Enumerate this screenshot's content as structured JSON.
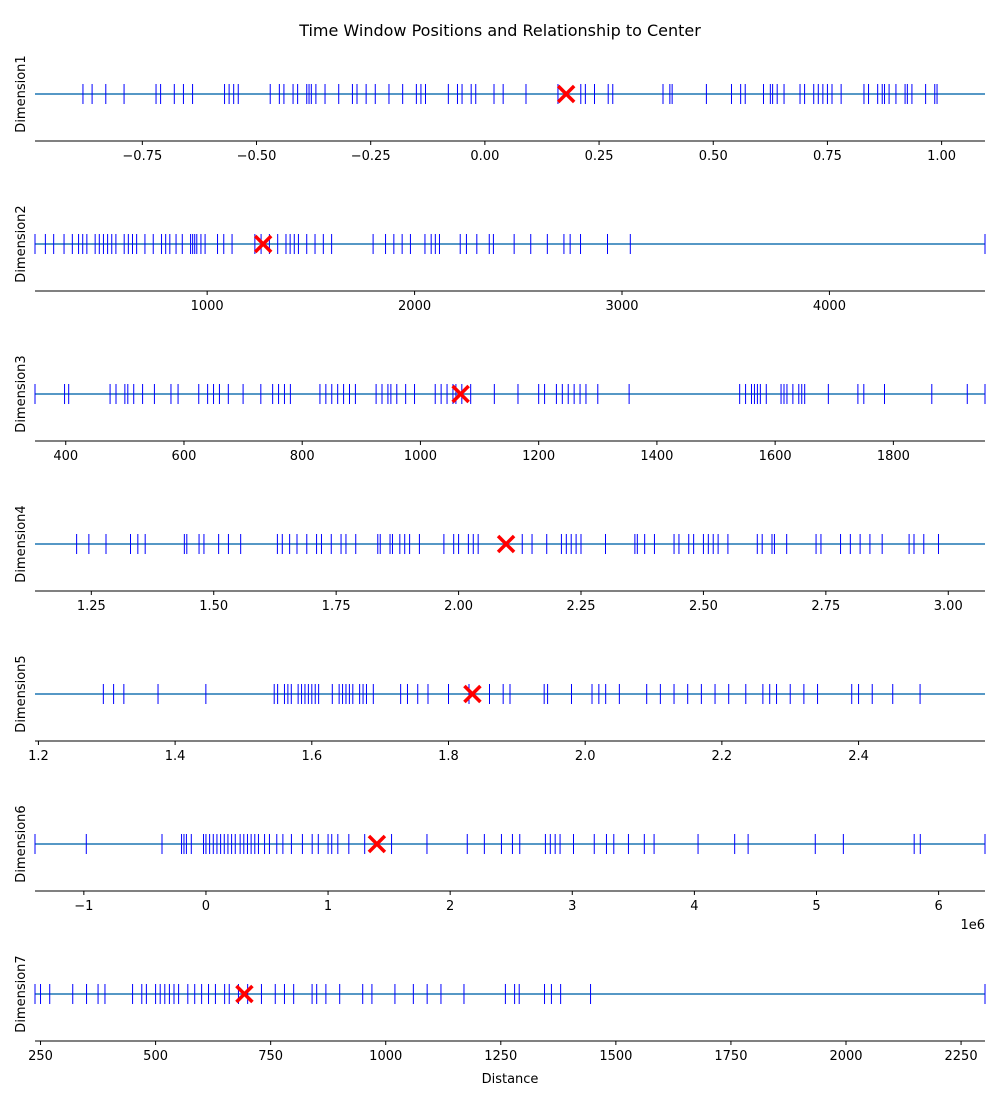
{
  "chart_data": {
    "type": "event-plot",
    "title": "Time Window Positions and Relationship to Center",
    "xlabel": "Distance",
    "marker": "x",
    "colors": {
      "ticks": "#0000ff",
      "line": "#1f77b4",
      "center": "#ff0000"
    },
    "panels": [
      {
        "ylabel": "Dimension1",
        "xlim": [
          -0.985,
          1.095
        ],
        "ticks": [
          -0.75,
          -0.5,
          -0.25,
          0.0,
          0.25,
          0.5,
          0.75,
          1.0
        ],
        "tick_labels": [
          "−0.75",
          "−0.50",
          "−0.25",
          "0.00",
          "0.25",
          "0.50",
          "0.75",
          "1.00"
        ],
        "offset_label": "",
        "center": 0.178,
        "events": [
          -0.88,
          -0.86,
          -0.83,
          -0.79,
          -0.72,
          -0.71,
          -0.68,
          -0.66,
          -0.64,
          -0.57,
          -0.56,
          -0.55,
          -0.54,
          -0.47,
          -0.45,
          -0.44,
          -0.42,
          -0.41,
          -0.39,
          -0.385,
          -0.38,
          -0.37,
          -0.35,
          -0.32,
          -0.29,
          -0.28,
          -0.26,
          -0.24,
          -0.21,
          -0.18,
          -0.15,
          -0.14,
          -0.13,
          -0.08,
          -0.06,
          -0.05,
          -0.03,
          -0.02,
          0.02,
          0.04,
          0.09,
          0.16,
          0.21,
          0.22,
          0.24,
          0.27,
          0.28,
          0.39,
          0.405,
          0.41,
          0.485,
          0.54,
          0.56,
          0.57,
          0.61,
          0.625,
          0.63,
          0.64,
          0.655,
          0.69,
          0.7,
          0.72,
          0.73,
          0.74,
          0.75,
          0.76,
          0.78,
          0.83,
          0.84,
          0.86,
          0.87,
          0.875,
          0.885,
          0.9,
          0.92,
          0.925,
          0.935,
          0.965,
          0.985,
          0.99
        ]
      },
      {
        "ylabel": "Dimension2",
        "xlim": [
          170,
          4750
        ],
        "ticks": [
          1000,
          2000,
          3000,
          4000
        ],
        "tick_labels": [
          "1000",
          "2000",
          "3000",
          "4000"
        ],
        "offset_label": "",
        "center": 1270,
        "events": [
          170,
          220,
          260,
          310,
          350,
          380,
          400,
          420,
          460,
          480,
          500,
          520,
          540,
          560,
          600,
          620,
          640,
          660,
          700,
          740,
          780,
          800,
          820,
          850,
          880,
          920,
          930,
          940,
          950,
          970,
          990,
          1050,
          1080,
          1120,
          1230,
          1260,
          1300,
          1340,
          1380,
          1400,
          1420,
          1440,
          1480,
          1520,
          1560,
          1600,
          1800,
          1860,
          1900,
          1940,
          1980,
          2050,
          2080,
          2100,
          2120,
          2220,
          2250,
          2300,
          2360,
          2380,
          2480,
          2560,
          2640,
          2720,
          2750,
          2800,
          2930,
          3040,
          4750
        ]
      },
      {
        "ylabel": "Dimension3",
        "xlim": [
          348,
          1955
        ],
        "ticks": [
          400,
          600,
          800,
          1000,
          1200,
          1400,
          1600,
          1800
        ],
        "tick_labels": [
          "400",
          "600",
          "800",
          "1000",
          "1200",
          "1400",
          "1600",
          "1800"
        ],
        "offset_label": "",
        "center": 1068,
        "events": [
          348,
          398,
          405,
          475,
          485,
          500,
          505,
          515,
          530,
          550,
          578,
          590,
          625,
          640,
          650,
          660,
          675,
          700,
          730,
          750,
          760,
          770,
          780,
          830,
          840,
          850,
          860,
          870,
          880,
          890,
          925,
          935,
          945,
          950,
          960,
          975,
          990,
          1025,
          1035,
          1045,
          1055,
          1060,
          1070,
          1085,
          1125,
          1165,
          1200,
          1210,
          1230,
          1240,
          1250,
          1260,
          1270,
          1280,
          1300,
          1353,
          1540,
          1550,
          1560,
          1565,
          1570,
          1575,
          1585,
          1610,
          1615,
          1620,
          1630,
          1640,
          1645,
          1650,
          1690,
          1740,
          1750,
          1785,
          1865,
          1925,
          1955
        ]
      },
      {
        "ylabel": "Dimension4",
        "xlim": [
          1.135,
          3.075
        ],
        "ticks": [
          1.25,
          1.5,
          1.75,
          2.0,
          2.25,
          2.5,
          2.75,
          3.0
        ],
        "tick_labels": [
          "1.25",
          "1.50",
          "1.75",
          "2.00",
          "2.25",
          "2.50",
          "2.75",
          "3.00"
        ],
        "offset_label": "",
        "center": 2.097,
        "events": [
          1.22,
          1.245,
          1.28,
          1.33,
          1.345,
          1.36,
          1.44,
          1.445,
          1.47,
          1.48,
          1.51,
          1.53,
          1.555,
          1.63,
          1.64,
          1.655,
          1.67,
          1.69,
          1.71,
          1.72,
          1.74,
          1.76,
          1.77,
          1.79,
          1.835,
          1.84,
          1.86,
          1.865,
          1.88,
          1.89,
          1.9,
          1.92,
          1.97,
          1.99,
          2.0,
          2.02,
          2.03,
          2.04,
          2.13,
          2.15,
          2.18,
          2.21,
          2.22,
          2.23,
          2.24,
          2.25,
          2.3,
          2.36,
          2.365,
          2.38,
          2.4,
          2.44,
          2.45,
          2.47,
          2.48,
          2.5,
          2.51,
          2.52,
          2.53,
          2.55,
          2.61,
          2.62,
          2.64,
          2.645,
          2.67,
          2.73,
          2.74,
          2.78,
          2.8,
          2.82,
          2.84,
          2.865,
          2.92,
          2.93,
          2.95,
          2.98
        ]
      },
      {
        "ylabel": "Dimension5",
        "xlim": [
          1.195,
          2.585
        ],
        "ticks": [
          1.2,
          1.4,
          1.6,
          1.8,
          2.0,
          2.2,
          2.4
        ],
        "tick_labels": [
          "1.2",
          "1.4",
          "1.6",
          "1.8",
          "2.0",
          "2.2",
          "2.4"
        ],
        "offset_label": "",
        "center": 1.835,
        "events": [
          1.295,
          1.31,
          1.325,
          1.375,
          1.445,
          1.545,
          1.55,
          1.56,
          1.565,
          1.57,
          1.58,
          1.585,
          1.59,
          1.595,
          1.6,
          1.605,
          1.61,
          1.63,
          1.64,
          1.645,
          1.65,
          1.655,
          1.66,
          1.67,
          1.675,
          1.68,
          1.69,
          1.73,
          1.74,
          1.755,
          1.77,
          1.8,
          1.83,
          1.86,
          1.88,
          1.89,
          1.94,
          1.945,
          1.98,
          2.01,
          2.02,
          2.03,
          2.05,
          2.09,
          2.11,
          2.13,
          2.15,
          2.17,
          2.19,
          2.21,
          2.235,
          2.26,
          2.27,
          2.28,
          2.3,
          2.32,
          2.34,
          2.39,
          2.4,
          2.42,
          2.45,
          2.49
        ]
      },
      {
        "ylabel": "Dimension6",
        "xlim": [
          -1400000,
          6380000
        ],
        "ticks": [
          -1000000,
          0,
          1000000,
          2000000,
          3000000,
          4000000,
          5000000,
          6000000
        ],
        "tick_labels": [
          "−1",
          "0",
          "1",
          "2",
          "3",
          "4",
          "5",
          "6"
        ],
        "offset_label": "1e6",
        "center": 1400000,
        "events": [
          -1400000,
          -980000,
          -360000,
          -200000,
          -180000,
          -160000,
          -120000,
          -20000,
          0,
          30000,
          60000,
          90000,
          120000,
          150000,
          180000,
          210000,
          240000,
          280000,
          310000,
          340000,
          370000,
          400000,
          430000,
          480000,
          520000,
          580000,
          630000,
          700000,
          790000,
          870000,
          920000,
          1000000,
          1030000,
          1080000,
          1170000,
          1300000,
          1520000,
          1810000,
          2140000,
          2280000,
          2420000,
          2510000,
          2570000,
          2780000,
          2820000,
          2860000,
          2900000,
          3010000,
          3180000,
          3280000,
          3340000,
          3460000,
          3590000,
          3670000,
          4030000,
          4330000,
          4440000,
          4990000,
          5220000,
          5800000,
          5850000,
          6380000
        ]
      },
      {
        "ylabel": "Dimension7",
        "xlim": [
          238,
          2302
        ],
        "ticks": [
          250,
          500,
          750,
          1000,
          1250,
          1500,
          1750,
          2000,
          2250
        ],
        "tick_labels": [
          "250",
          "500",
          "750",
          "1000",
          "1250",
          "1500",
          "1750",
          "2000",
          "2250"
        ],
        "offset_label": "",
        "center": 693,
        "events": [
          238,
          250,
          270,
          320,
          350,
          375,
          390,
          450,
          470,
          480,
          500,
          510,
          520,
          530,
          540,
          550,
          570,
          585,
          600,
          615,
          630,
          650,
          660,
          680,
          700,
          730,
          760,
          780,
          800,
          840,
          850,
          870,
          900,
          950,
          970,
          1020,
          1060,
          1090,
          1120,
          1170,
          1260,
          1280,
          1290,
          1345,
          1360,
          1380,
          1445,
          2302
        ]
      }
    ]
  }
}
